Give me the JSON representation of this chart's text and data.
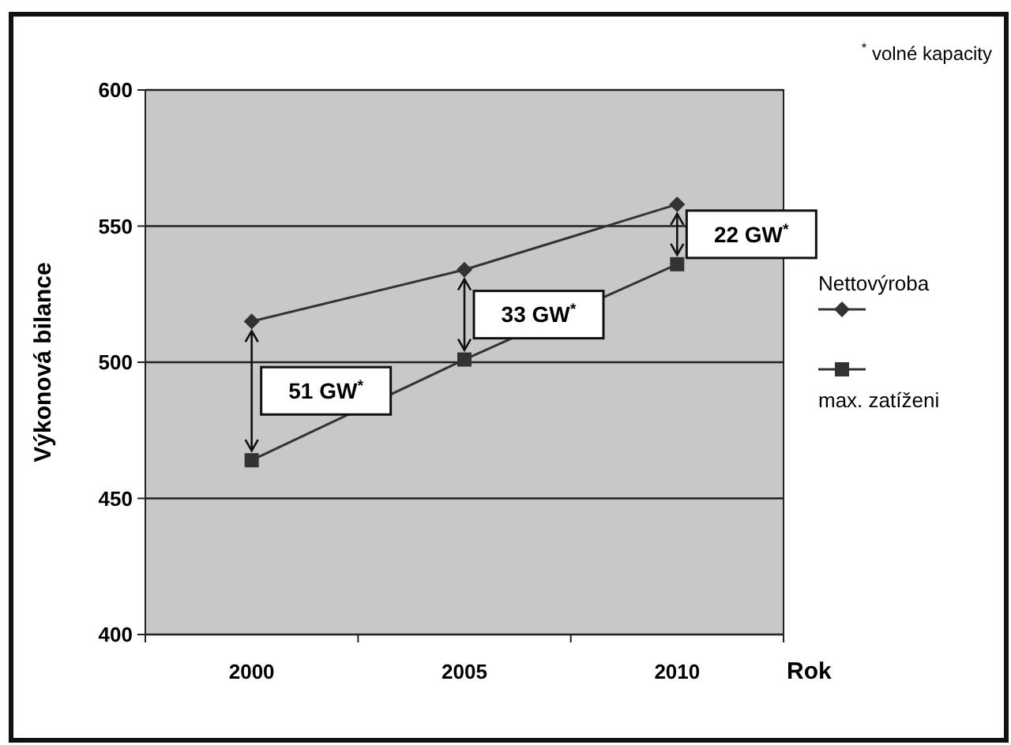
{
  "chart_data": {
    "type": "line",
    "xlabel": "Rok",
    "ylabel": "Výkonová bilance",
    "categories": [
      "2000",
      "2005",
      "2010"
    ],
    "series": [
      {
        "name": "Nettovýroba",
        "color": "#333333",
        "marker": "diamond",
        "values": [
          515,
          534,
          558
        ]
      },
      {
        "name": "max. zatíženi",
        "color": "#333333",
        "marker": "square",
        "values": [
          464,
          501,
          536
        ]
      }
    ],
    "ylim": [
      400,
      600
    ],
    "yticks": [
      400,
      450,
      500,
      550,
      600
    ],
    "grid": "y",
    "legend": "right",
    "annotations": [
      "51 GW$^{*}$",
      "33 GW$^{*}$",
      "22 GW$^{*}$",
      "$^{*}$ volné kapacity"
    ]
  }
}
